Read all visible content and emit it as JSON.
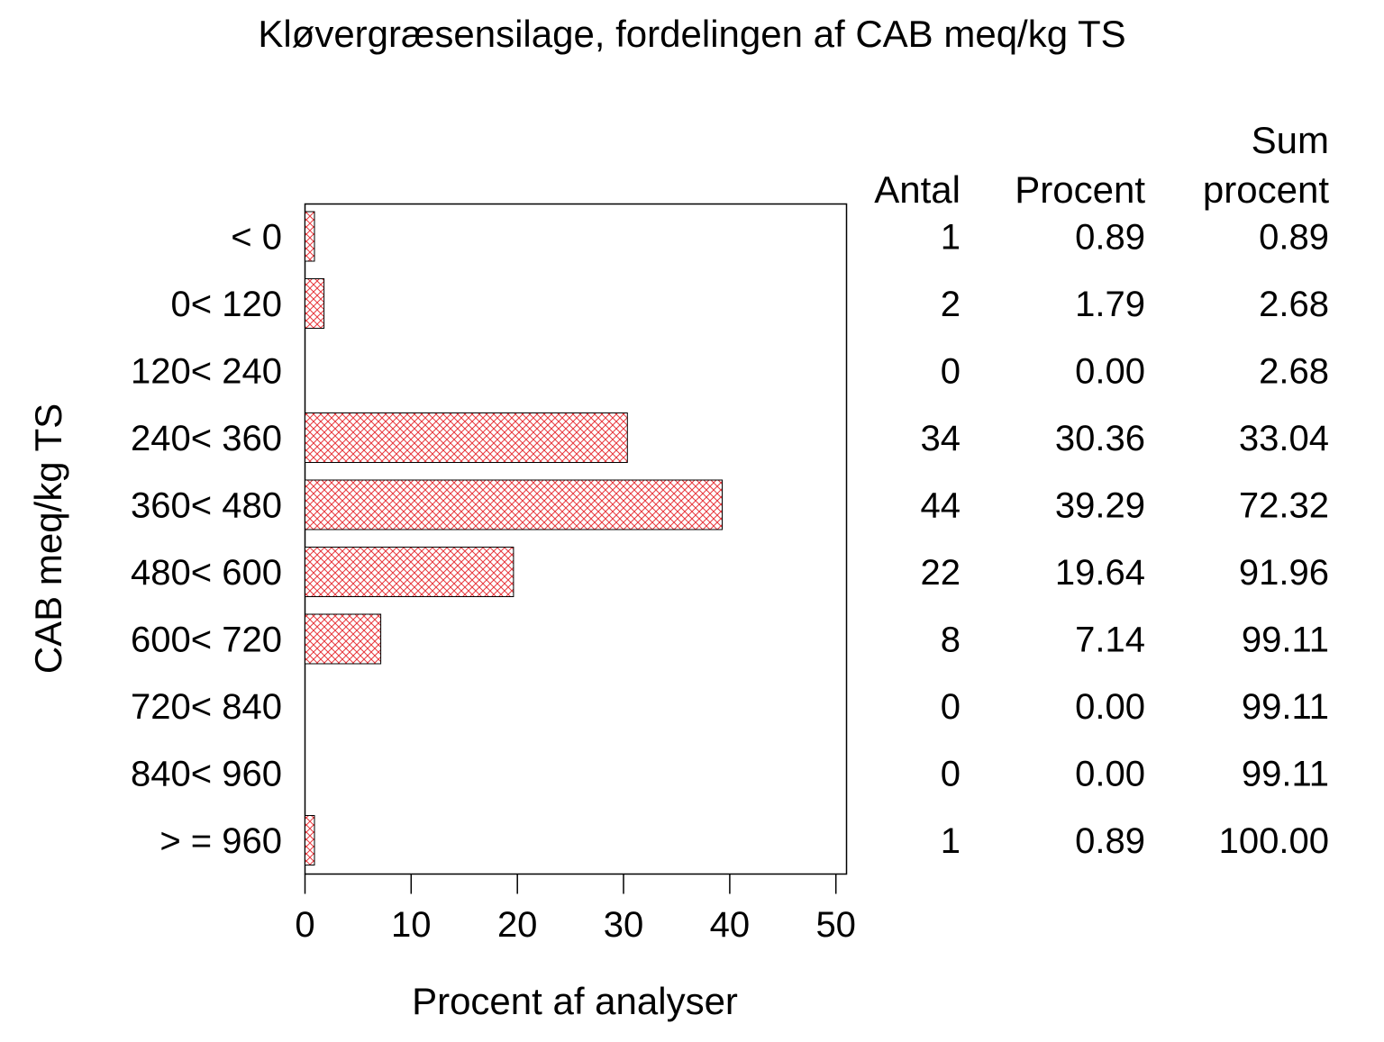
{
  "chart_data": {
    "type": "bar",
    "orientation": "horizontal",
    "title": "Kløvergræsensilage, fordelingen af CAB meq/kg TS",
    "xlabel": "Procent af analyser",
    "ylabel": "CAB meq/kg TS",
    "xlim": [
      0,
      50
    ],
    "xticks": [
      "0",
      "10",
      "20",
      "30",
      "40",
      "50"
    ],
    "categories": [
      "< 0",
      "0< 120",
      "120< 240",
      "240< 360",
      "360< 480",
      "480< 600",
      "600< 720",
      "720< 840",
      "840< 960",
      "> = 960"
    ],
    "values": [
      0.89,
      1.79,
      0.0,
      30.36,
      39.29,
      19.64,
      7.14,
      0.0,
      0.0,
      0.89
    ],
    "bar_color": "#e8383d",
    "bar_fill_pattern": "crosshatch",
    "grid": false,
    "legend": "none",
    "table": {
      "headers": {
        "antal": [
          "",
          "Antal"
        ],
        "procent": [
          "",
          "Procent"
        ],
        "sum": [
          "Sum",
          "procent"
        ]
      },
      "antal": [
        "1",
        "2",
        "0",
        "34",
        "44",
        "22",
        "8",
        "0",
        "0",
        "1"
      ],
      "procent": [
        "0.89",
        "1.79",
        "0.00",
        "30.36",
        "39.29",
        "19.64",
        "7.14",
        "0.00",
        "0.00",
        "0.89"
      ],
      "sum_procent": [
        "0.89",
        "2.68",
        "2.68",
        "33.04",
        "72.32",
        "91.96",
        "99.11",
        "99.11",
        "99.11",
        "100.00"
      ]
    }
  }
}
